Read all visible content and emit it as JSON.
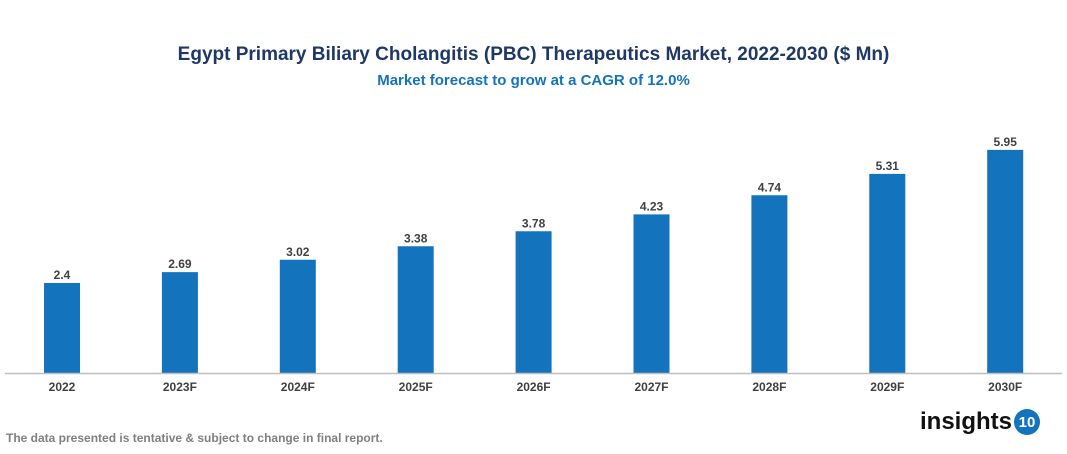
{
  "chart_data": {
    "type": "bar",
    "title": "Egypt Primary Biliary Cholangitis (PBC) Therapeutics Market, 2022-2030 ($ Mn)",
    "subtitle": "Market forecast to grow at a CAGR of 12.0%",
    "categories": [
      "2022",
      "2023F",
      "2024F",
      "2025F",
      "2026F",
      "2027F",
      "2028F",
      "2029F",
      "2030F"
    ],
    "values": [
      2.4,
      2.69,
      3.02,
      3.38,
      3.78,
      4.23,
      4.74,
      5.31,
      5.95
    ],
    "value_labels": [
      "2.4",
      "2.69",
      "3.02",
      "3.38",
      "3.78",
      "4.23",
      "4.74",
      "5.31",
      "5.95"
    ],
    "xlabel": "",
    "ylabel": "",
    "ylim": [
      0,
      6
    ],
    "grid": false,
    "bar_color": "#1473bd"
  },
  "footer": {
    "note": "The data presented is tentative & subject to change in final report.",
    "logo_text": "insights",
    "logo_number": "10"
  }
}
